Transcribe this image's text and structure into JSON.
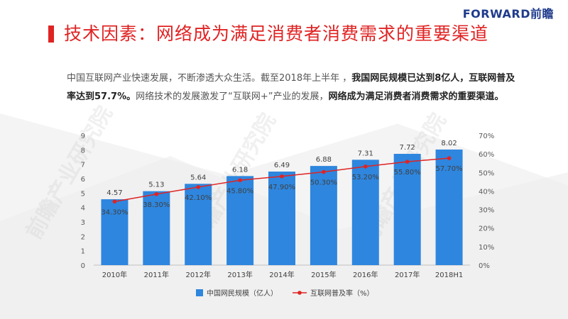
{
  "header": {
    "title": "技术因素：网络成为满足消费者消费需求的重要渠道",
    "logo_text": "FORWARD前瞻",
    "accent_color": "#e02323"
  },
  "body": {
    "p1": "中国互联网产业快速发展，不断渗透大众生活。截至2018年上半年 ，",
    "p1_bold": "我国网民规模已达到8亿人，互联网普及率达到57.7%。",
    "p2": "网络技术的发展激发了“互联网+”产业的发展，",
    "p2_bold": "网络成为满足消费者消费需求的重要渠道。"
  },
  "watermark_text": "前瞻产业研究院",
  "chart_data": {
    "type": "bar",
    "categories": [
      "2010年",
      "2011年",
      "2012年",
      "2013年",
      "2014年",
      "2015年",
      "2016年",
      "2017年",
      "2018H1"
    ],
    "series": [
      {
        "name": "中国网民规模（亿人）",
        "type": "bar",
        "axis": "left",
        "values": [
          4.57,
          5.13,
          5.64,
          6.18,
          6.49,
          6.88,
          7.31,
          7.72,
          8.02
        ],
        "labels": [
          "4.57",
          "5.13",
          "5.64",
          "6.18",
          "6.49",
          "6.88",
          "7.31",
          "7.72",
          "8.02"
        ],
        "color": "#2e86de"
      },
      {
        "name": "互联网普及率（%）",
        "type": "line",
        "axis": "right",
        "values": [
          34.3,
          38.3,
          42.1,
          45.8,
          47.9,
          50.3,
          53.2,
          55.8,
          57.7
        ],
        "labels": [
          "34.30%",
          "38.30%",
          "42.10%",
          "45.80%",
          "47.90%",
          "50.30%",
          "53.20%",
          "55.80%",
          "57.70%"
        ],
        "color": "#e02323"
      }
    ],
    "y_left": {
      "min": 0,
      "max": 9,
      "ticks": [
        "0",
        "1",
        "2",
        "3",
        "4",
        "5",
        "6",
        "7",
        "8",
        "9"
      ]
    },
    "y_right": {
      "min": 0,
      "max": 70,
      "ticks": [
        "0%",
        "10%",
        "20%",
        "30%",
        "40%",
        "50%",
        "60%",
        "70%"
      ]
    },
    "legend_position": "bottom",
    "grid": false
  }
}
